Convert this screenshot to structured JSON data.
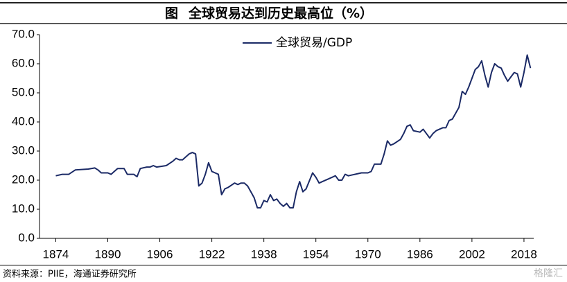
{
  "chart_data": {
    "type": "line",
    "figure_label": "图",
    "title": "全球贸易达到历史最高位（%）",
    "source": "资料来源：PIIE，海通证券研究所",
    "watermark": "格隆汇",
    "series": [
      {
        "name": "全球贸易/GDP",
        "color": "#1b2a66",
        "x": [
          1874,
          1876,
          1878,
          1880,
          1884,
          1886,
          1887,
          1888,
          1890,
          1891,
          1893,
          1895,
          1896,
          1898,
          1899,
          1900,
          1902,
          1903,
          1904,
          1905,
          1908,
          1910,
          1911,
          1912,
          1913,
          1914,
          1915,
          1916,
          1917,
          1918,
          1919,
          1920,
          1921,
          1922,
          1923,
          1924,
          1925,
          1926,
          1927,
          1929,
          1930,
          1931,
          1932,
          1933,
          1934,
          1935,
          1936,
          1937,
          1938,
          1939,
          1940,
          1941,
          1942,
          1943,
          1944,
          1945,
          1946,
          1947,
          1948,
          1949,
          1950,
          1951,
          1953,
          1954,
          1955,
          1956,
          1958,
          1960,
          1961,
          1962,
          1963,
          1964,
          1966,
          1968,
          1970,
          1971,
          1972,
          1974,
          1975,
          1976,
          1977,
          1978,
          1980,
          1981,
          1982,
          1983,
          1984,
          1986,
          1987,
          1988,
          1989,
          1990,
          1991,
          1993,
          1994,
          1995,
          1996,
          1997,
          1998,
          1999,
          2000,
          2001,
          2002,
          2003,
          2004,
          2005,
          2006,
          2007,
          2008,
          2009,
          2010,
          2011,
          2012,
          2013,
          2014,
          2015,
          2016,
          2017,
          2018,
          2019,
          2020
        ],
        "values": [
          21.5,
          22,
          22,
          23.5,
          23.8,
          24.2,
          23.5,
          22.5,
          22.5,
          22,
          24,
          24,
          22,
          22,
          21.2,
          24,
          24.5,
          24.5,
          25,
          24.5,
          25,
          26.5,
          27.5,
          27,
          27,
          28,
          29,
          29.5,
          29,
          18,
          19,
          22,
          26,
          23,
          22.5,
          22,
          15,
          17,
          17.5,
          19,
          18.5,
          19,
          19,
          18,
          16,
          14,
          10.5,
          10.5,
          13,
          12.5,
          15,
          13,
          13.5,
          12,
          11,
          12,
          10.5,
          10.5,
          16,
          19.5,
          16,
          17,
          22.5,
          21,
          19,
          19.5,
          20.5,
          21.5,
          20,
          20,
          22,
          21.5,
          22,
          22.5,
          22.5,
          23,
          25.5,
          25.5,
          29,
          33.5,
          32,
          32.5,
          34,
          36,
          38.5,
          39,
          37,
          36.5,
          37.5,
          36,
          34.5,
          36,
          37,
          38,
          38,
          40.5,
          41,
          43,
          45,
          50.5,
          49.5,
          52,
          55,
          58,
          59,
          61,
          56,
          52,
          57,
          60,
          59,
          58.5,
          56,
          54,
          55.5,
          57,
          56.5,
          52,
          57,
          63,
          58.5
        ]
      }
    ],
    "xlim": [
      1869,
      2021
    ],
    "xticks": [
      1874,
      1890,
      1906,
      1922,
      1938,
      1954,
      1970,
      1986,
      2002,
      2018
    ],
    "ylim": [
      0,
      70
    ],
    "yticks": [
      {
        "value": 0,
        "label": "0.0"
      },
      {
        "value": 10,
        "label": "10.0"
      },
      {
        "value": 20,
        "label": "20.0"
      },
      {
        "value": 30,
        "label": "30.0"
      },
      {
        "value": 40,
        "label": "40.0"
      },
      {
        "value": 50,
        "label": "50.0"
      },
      {
        "value": 60,
        "label": "60.0"
      },
      {
        "value": 70,
        "label": "70.0"
      }
    ],
    "legend": "top"
  }
}
